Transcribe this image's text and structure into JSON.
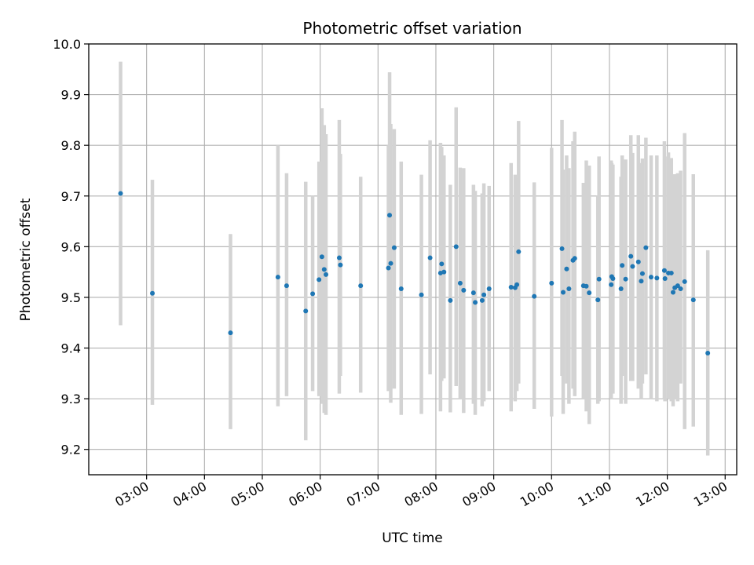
{
  "chart_data": {
    "type": "scatter",
    "title": "Photometric offset variation",
    "xlabel": "UTC time",
    "ylabel": "Photometric offset",
    "x_unit": "hours UTC",
    "xlim": [
      2.0,
      13.2
    ],
    "ylim": [
      9.15,
      10.0
    ],
    "grid": true,
    "x_ticks": [
      3,
      4,
      5,
      6,
      7,
      8,
      9,
      10,
      11,
      12,
      13
    ],
    "x_tick_labels": [
      "03:00",
      "04:00",
      "05:00",
      "06:00",
      "07:00",
      "08:00",
      "09:00",
      "10:00",
      "11:00",
      "12:00",
      "13:00"
    ],
    "y_ticks": [
      9.2,
      9.3,
      9.4,
      9.5,
      9.6,
      9.7,
      9.8,
      9.9,
      10.0
    ],
    "y_tick_labels": [
      "9.2",
      "9.3",
      "9.4",
      "9.5",
      "9.6",
      "9.7",
      "9.8",
      "9.9",
      "10.0"
    ],
    "colors": {
      "points": "#1f77b4",
      "error_bars": "#d3d3d3",
      "grid": "#b0b0b0"
    },
    "series": [
      {
        "x": [
          2.55,
          3.1,
          4.45,
          5.27,
          5.42,
          5.75,
          5.87,
          5.98,
          6.03,
          6.07,
          6.1,
          6.33,
          6.35,
          6.7,
          7.18,
          7.2,
          7.22,
          7.28,
          7.4,
          7.75,
          7.9,
          8.08,
          8.1,
          8.14,
          8.25,
          8.35,
          8.42,
          8.48,
          8.65,
          8.68,
          8.8,
          8.83,
          8.92,
          9.3,
          9.37,
          9.4,
          9.43,
          9.7,
          10.0,
          10.18,
          10.2,
          10.26,
          10.3,
          10.37,
          10.4,
          10.55,
          10.6,
          10.65,
          10.8,
          10.82,
          11.03,
          11.04,
          11.06,
          11.2,
          11.22,
          11.28,
          11.37,
          11.4,
          11.5,
          11.55,
          11.57,
          11.63,
          11.72,
          11.82,
          11.95,
          11.96,
          12.02,
          12.07,
          12.1,
          12.13,
          12.18,
          12.23,
          12.3,
          12.45,
          12.7
        ],
        "y": [
          9.705,
          9.508,
          9.43,
          9.54,
          9.523,
          9.473,
          9.507,
          9.535,
          9.58,
          9.555,
          9.545,
          9.578,
          9.564,
          9.523,
          9.558,
          9.662,
          9.567,
          9.598,
          9.517,
          9.505,
          9.578,
          9.548,
          9.566,
          9.55,
          9.494,
          9.6,
          9.528,
          9.514,
          9.509,
          9.49,
          9.494,
          9.505,
          9.517,
          9.52,
          9.519,
          9.525,
          9.59,
          9.502,
          9.528,
          9.596,
          9.51,
          9.556,
          9.517,
          9.573,
          9.577,
          9.523,
          9.522,
          9.509,
          9.495,
          9.536,
          9.525,
          9.541,
          9.537,
          9.517,
          9.563,
          9.536,
          9.581,
          9.561,
          9.57,
          9.532,
          9.547,
          9.598,
          9.54,
          9.538,
          9.553,
          9.537,
          9.548,
          9.548,
          9.51,
          9.519,
          9.523,
          9.517,
          9.531,
          9.495,
          9.39
        ],
        "y_err_low": [
          9.445,
          9.288,
          9.24,
          9.285,
          9.305,
          9.218,
          9.315,
          9.305,
          9.29,
          9.272,
          9.268,
          9.31,
          9.345,
          9.312,
          9.315,
          9.4,
          9.292,
          9.32,
          9.268,
          9.27,
          9.348,
          9.275,
          9.335,
          9.34,
          9.273,
          9.325,
          9.3,
          9.272,
          9.29,
          9.268,
          9.285,
          9.295,
          9.315,
          9.275,
          9.295,
          9.315,
          9.33,
          9.28,
          9.265,
          9.345,
          9.27,
          9.33,
          9.29,
          9.32,
          9.305,
          9.3,
          9.275,
          9.25,
          9.29,
          9.295,
          9.3,
          9.32,
          9.31,
          9.29,
          9.345,
          9.29,
          9.335,
          9.335,
          9.32,
          9.3,
          9.33,
          9.348,
          9.3,
          9.295,
          9.3,
          9.295,
          9.3,
          9.295,
          9.285,
          9.3,
          9.295,
          9.33,
          9.24,
          9.245,
          9.188
        ],
        "y_err_high": [
          9.965,
          9.732,
          9.625,
          9.8,
          9.745,
          9.728,
          9.7,
          9.768,
          9.873,
          9.84,
          9.822,
          9.85,
          9.783,
          9.738,
          9.8,
          9.944,
          9.842,
          9.832,
          9.768,
          9.742,
          9.81,
          9.805,
          9.797,
          9.78,
          9.722,
          9.875,
          9.756,
          9.755,
          9.722,
          9.71,
          9.705,
          9.725,
          9.72,
          9.765,
          9.742,
          9.735,
          9.848,
          9.727,
          9.795,
          9.85,
          9.752,
          9.78,
          9.755,
          9.808,
          9.827,
          9.726,
          9.77,
          9.76,
          9.7,
          9.778,
          9.77,
          9.765,
          9.762,
          9.738,
          9.78,
          9.772,
          9.82,
          9.785,
          9.82,
          9.765,
          9.774,
          9.815,
          9.78,
          9.78,
          9.808,
          9.778,
          9.786,
          9.775,
          9.742,
          9.743,
          9.745,
          9.75,
          9.824,
          9.743,
          9.593
        ]
      }
    ]
  }
}
